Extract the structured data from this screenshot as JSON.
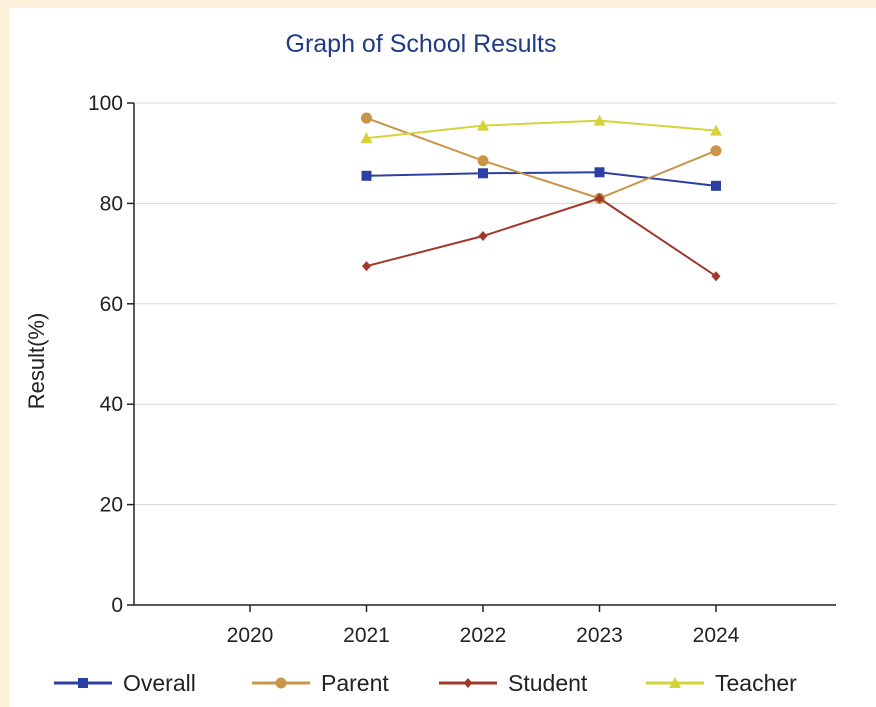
{
  "chart_data": {
    "type": "line",
    "title": "Graph of School Results",
    "xlabel": "",
    "ylabel": "Result(%)",
    "categories": [
      "2020",
      "2021",
      "2022",
      "2023",
      "2024"
    ],
    "ylim": [
      0,
      100
    ],
    "yticks": [
      0,
      20,
      40,
      60,
      80,
      100
    ],
    "grid": true,
    "legend_position": "bottom",
    "series": [
      {
        "name": "Overall",
        "color": "#2e3fa3",
        "marker": "square",
        "values": [
          null,
          85.5,
          86,
          86.2,
          83.5
        ]
      },
      {
        "name": "Parent",
        "color": "#c9954a",
        "marker": "circle",
        "values": [
          null,
          97,
          88.5,
          81,
          90.5
        ]
      },
      {
        "name": "Student",
        "color": "#a0392c",
        "marker": "diamond",
        "values": [
          null,
          67.5,
          73.5,
          81,
          65.5
        ]
      },
      {
        "name": "Teacher",
        "color": "#d4d43a",
        "marker": "triangle",
        "values": [
          null,
          93,
          95.5,
          96.5,
          94.5
        ]
      }
    ]
  }
}
